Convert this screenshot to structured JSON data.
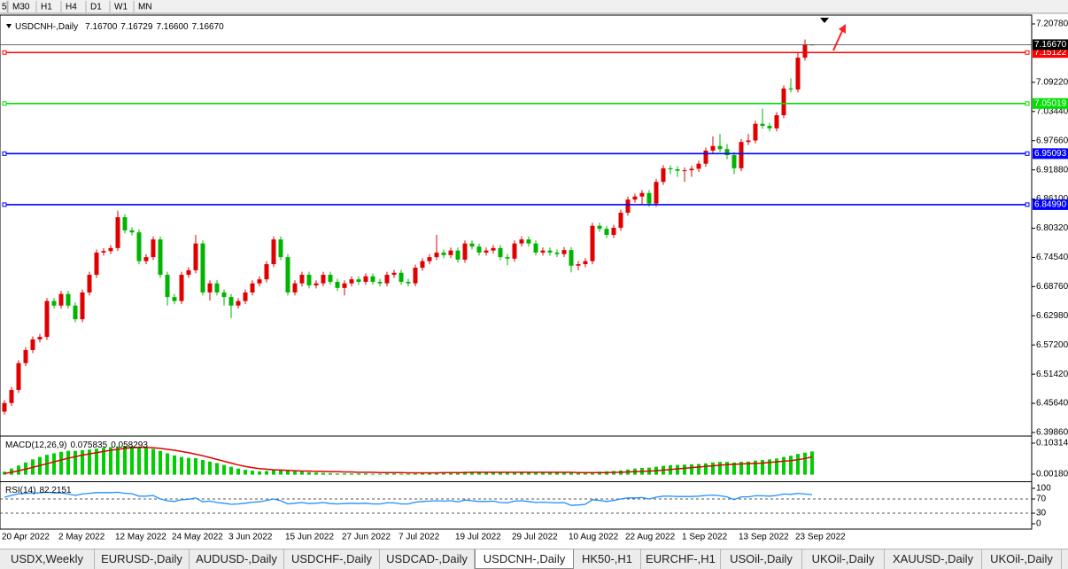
{
  "toolbar": [
    "5",
    "M30",
    "H1",
    "H4",
    "D1",
    "W1",
    "MN"
  ],
  "tabs": [
    {
      "label": "USDX,Weekly",
      "active": false
    },
    {
      "label": "EURUSD-,Daily",
      "active": false
    },
    {
      "label": "AUDUSD-,Daily",
      "active": false
    },
    {
      "label": "USDCHF-,Daily",
      "active": false
    },
    {
      "label": "USDCAD-,Daily",
      "active": false
    },
    {
      "label": "USDCNH-,Daily",
      "active": true
    },
    {
      "label": "HK50-,H1",
      "active": false
    },
    {
      "label": "EURCHF-,H1",
      "active": false
    },
    {
      "label": "USOil-,Daily",
      "active": false
    },
    {
      "label": "UKOil-,Daily",
      "active": false
    },
    {
      "label": "XAUUSD-,Daily",
      "active": false
    },
    {
      "label": "UKOil-,Daily",
      "active": false
    }
  ],
  "chart_data": [
    {
      "type": "candlestick",
      "title": "USDCNH-,Daily",
      "quote": [
        {
          "value": 7.167,
          "label": "7.16700"
        },
        7.16729,
        {
          "value": 7.166,
          "label": "7.16600"
        },
        {
          "value": 7.1667,
          "label": "7.16670"
        }
      ],
      "categories": [
        "20 Apr 2022",
        null,
        null,
        null,
        null,
        null,
        null,
        null,
        "2 May 2022",
        null,
        null,
        null,
        null,
        null,
        null,
        null,
        "12 May 2022",
        null,
        null,
        null,
        null,
        null,
        null,
        null,
        "24 May 2022",
        null,
        null,
        null,
        null,
        null,
        null,
        null,
        "3 Jun 2022",
        null,
        null,
        null,
        null,
        null,
        null,
        null,
        "15 Jun 2022",
        null,
        null,
        null,
        null,
        null,
        null,
        null,
        "27 Jun 2022",
        null,
        null,
        null,
        null,
        null,
        null,
        null,
        "7 Jul 2022",
        null,
        null,
        null,
        null,
        null,
        null,
        null,
        "19 Jul 2022",
        null,
        null,
        null,
        null,
        null,
        null,
        null,
        "29 Jul 2022",
        null,
        null,
        null,
        null,
        null,
        null,
        null,
        "10 Aug 2022",
        null,
        null,
        null,
        null,
        null,
        null,
        null,
        "22 Aug 2022",
        null,
        null,
        null,
        null,
        null,
        null,
        null,
        "1 Sep 2022",
        null,
        null,
        null,
        null,
        null,
        null,
        null,
        "13 Sep 2022",
        null,
        null,
        null,
        null,
        null,
        null,
        null,
        "23 Sep 2022",
        null,
        null
      ],
      "open": [
        6.44,
        6.457,
        6.483,
        6.536,
        6.562,
        6.583,
        6.588,
        6.659,
        6.65,
        6.673,
        6.65,
        6.623,
        6.676,
        6.711,
        6.755,
        6.758,
        6.764,
        6.825,
        6.799,
        6.795,
        6.738,
        6.746,
        6.781,
        6.711,
        6.667,
        6.659,
        6.711,
        6.72,
        6.773,
        6.676,
        6.694,
        6.676,
        6.667,
        6.65,
        6.659,
        6.676,
        6.694,
        6.702,
        6.732,
        6.781,
        6.746,
        6.676,
        6.694,
        6.711,
        6.69,
        6.694,
        6.711,
        6.697,
        6.685,
        6.694,
        6.702,
        6.697,
        6.708,
        6.697,
        6.694,
        6.711,
        6.715,
        6.697,
        6.694,
        6.725,
        6.738,
        6.746,
        6.755,
        6.75,
        6.759,
        6.741,
        6.773,
        6.767,
        6.755,
        6.759,
        6.764,
        6.746,
        6.743,
        6.773,
        6.781,
        6.773,
        6.755,
        6.759,
        6.755,
        6.752,
        6.76,
        6.729,
        6.732,
        6.738,
        6.808,
        6.802,
        6.79,
        6.804,
        6.834,
        6.86,
        6.866,
        6.873,
        6.852,
        6.895,
        6.922,
        6.92,
        6.917,
        6.918,
        6.921,
        6.931,
        6.957,
        6.966,
        6.96,
        6.948,
        6.922,
        6.974,
        6.977,
        7.01,
        7.006,
        7.001,
        7.027,
        7.08,
        7.078,
        7.141,
        7.167
      ],
      "high": [
        6.463,
        6.489,
        6.542,
        6.568,
        6.589,
        6.594,
        6.665,
        6.665,
        6.679,
        6.679,
        6.656,
        6.682,
        6.717,
        6.761,
        6.764,
        6.77,
        6.838,
        6.831,
        6.805,
        6.801,
        6.752,
        6.787,
        6.787,
        6.717,
        6.673,
        6.717,
        6.726,
        6.79,
        6.779,
        6.7,
        6.7,
        6.682,
        6.673,
        6.665,
        6.682,
        6.7,
        6.708,
        6.738,
        6.787,
        6.787,
        6.752,
        6.7,
        6.717,
        6.717,
        6.7,
        6.717,
        6.717,
        6.703,
        6.7,
        6.708,
        6.708,
        6.714,
        6.714,
        6.703,
        6.717,
        6.721,
        6.721,
        6.703,
        6.731,
        6.744,
        6.752,
        6.79,
        6.761,
        6.765,
        6.765,
        6.779,
        6.779,
        6.773,
        6.765,
        6.77,
        6.77,
        6.752,
        6.779,
        6.787,
        6.787,
        6.779,
        6.765,
        6.765,
        6.761,
        6.766,
        6.766,
        6.738,
        6.744,
        6.814,
        6.814,
        6.808,
        6.81,
        6.84,
        6.866,
        6.872,
        6.879,
        6.879,
        6.901,
        6.928,
        6.928,
        6.926,
        6.924,
        6.927,
        6.937,
        6.963,
        6.985,
        6.99,
        6.97,
        6.954,
        6.98,
        6.99,
        7.016,
        7.04,
        7.012,
        7.033,
        7.086,
        7.1,
        7.15,
        7.177,
        7.16729
      ],
      "low": [
        6.434,
        6.451,
        6.477,
        6.53,
        6.556,
        6.577,
        6.582,
        6.644,
        6.644,
        6.644,
        6.617,
        6.617,
        6.67,
        6.705,
        6.749,
        6.752,
        6.758,
        6.793,
        6.789,
        6.732,
        6.732,
        6.74,
        6.705,
        6.65,
        6.653,
        6.653,
        6.705,
        6.714,
        6.67,
        6.66,
        6.67,
        6.65,
        6.625,
        6.644,
        6.653,
        6.67,
        6.688,
        6.696,
        6.726,
        6.74,
        6.67,
        6.67,
        6.688,
        6.684,
        6.684,
        6.688,
        6.691,
        6.679,
        6.67,
        6.688,
        6.691,
        6.691,
        6.691,
        6.688,
        6.688,
        6.705,
        6.691,
        6.688,
        6.688,
        6.719,
        6.732,
        6.74,
        6.744,
        6.744,
        6.735,
        6.735,
        6.761,
        6.749,
        6.749,
        6.753,
        6.74,
        6.73,
        6.737,
        6.767,
        6.767,
        6.749,
        6.749,
        6.749,
        6.746,
        6.746,
        6.716,
        6.72,
        6.726,
        6.732,
        6.796,
        6.784,
        6.784,
        6.798,
        6.828,
        6.854,
        6.85,
        6.846,
        6.846,
        6.889,
        6.91,
        6.905,
        6.895,
        6.905,
        6.915,
        6.925,
        6.951,
        6.954,
        6.94,
        6.91,
        6.916,
        6.968,
        6.971,
        7.0,
        6.995,
        6.995,
        7.021,
        7.072,
        7.072,
        7.135,
        7.166
      ],
      "close": [
        6.457,
        6.483,
        6.536,
        6.562,
        6.583,
        6.588,
        6.659,
        6.65,
        6.673,
        6.65,
        6.623,
        6.676,
        6.711,
        6.755,
        6.758,
        6.764,
        6.825,
        6.799,
        6.795,
        6.738,
        6.746,
        6.781,
        6.711,
        6.667,
        6.659,
        6.711,
        6.72,
        6.773,
        6.676,
        6.694,
        6.676,
        6.667,
        6.65,
        6.659,
        6.676,
        6.694,
        6.702,
        6.732,
        6.781,
        6.746,
        6.676,
        6.694,
        6.711,
        6.69,
        6.694,
        6.711,
        6.697,
        6.685,
        6.694,
        6.702,
        6.697,
        6.708,
        6.697,
        6.694,
        6.711,
        6.715,
        6.697,
        6.694,
        6.725,
        6.738,
        6.746,
        6.755,
        6.75,
        6.759,
        6.741,
        6.773,
        6.767,
        6.755,
        6.759,
        6.764,
        6.746,
        6.743,
        6.773,
        6.781,
        6.773,
        6.755,
        6.759,
        6.755,
        6.752,
        6.76,
        6.729,
        6.732,
        6.738,
        6.808,
        6.802,
        6.79,
        6.804,
        6.834,
        6.86,
        6.866,
        6.873,
        6.852,
        6.895,
        6.922,
        6.92,
        6.917,
        6.918,
        6.921,
        6.931,
        6.957,
        6.966,
        6.96,
        6.948,
        6.922,
        6.974,
        6.977,
        7.01,
        7.006,
        7.001,
        7.027,
        7.08,
        7.078,
        7.141,
        7.167,
        7.1667
      ],
      "up_color": "#e00000",
      "down_color": "#00b400",
      "ylim": [
        6.3916,
        7.2201
      ],
      "yticks": [
        {
          "value": 7.2078,
          "label": "7.20780"
        },
        {
          "value": 7.0922,
          "label": "7.09220"
        },
        {
          "value": 7.0344,
          "label": "7.03440"
        },
        {
          "value": 6.9766,
          "label": "6.97660"
        },
        {
          "value": 6.9188,
          "label": "6.91880"
        },
        {
          "value": 6.861,
          "label": "6.86100"
        },
        {
          "value": 6.8032,
          "label": "6.80320"
        },
        {
          "value": 6.7454,
          "label": "6.74540"
        },
        {
          "value": 6.6876,
          "label": "6.68760"
        },
        {
          "value": 6.6298,
          "label": "6.62980"
        },
        {
          "value": 6.572,
          "label": "6.57200"
        },
        {
          "value": 6.5142,
          "label": "6.51420"
        },
        {
          "value": 6.4564,
          "label": "6.45640"
        },
        {
          "value": 6.3986,
          "label": "6.39860"
        }
      ],
      "levels": [
        {
          "value": 7.15122,
          "color": "#ff0000"
        },
        {
          "value": 7.05019,
          "color": "#00e000"
        },
        {
          "value": 6.95093,
          "color": "#0000ff"
        },
        {
          "value": 6.8499,
          "label": "6.84990",
          "color": "#0000ff"
        }
      ],
      "grid": false
    },
    {
      "type": "bar",
      "series": [
        {
          "name": "MACD(12,26,9)",
          "color": "#00d000",
          "values": [
            0.01,
            0.02,
            0.03,
            0.04,
            0.05,
            0.058,
            0.065,
            0.07,
            0.075,
            0.078,
            0.078,
            0.08,
            0.082,
            0.085,
            0.088,
            0.09,
            0.092,
            0.094,
            0.093,
            0.09,
            0.087,
            0.084,
            0.078,
            0.07,
            0.063,
            0.058,
            0.055,
            0.054,
            0.048,
            0.043,
            0.038,
            0.032,
            0.026,
            0.02,
            0.016,
            0.013,
            0.011,
            0.012,
            0.016,
            0.017,
            0.013,
            0.011,
            0.01,
            0.008,
            0.007,
            0.006,
            0.005,
            0.004,
            0.004,
            0.004,
            0.004,
            0.004,
            0.003,
            0.003,
            0.004,
            0.004,
            0.003,
            0.003,
            0.004,
            0.005,
            0.006,
            0.007,
            0.008,
            0.008,
            0.009,
            0.01,
            0.01,
            0.01,
            0.01,
            0.01,
            0.009,
            0.008,
            0.009,
            0.01,
            0.01,
            0.009,
            0.009,
            0.008,
            0.008,
            0.008,
            0.006,
            0.005,
            0.005,
            0.008,
            0.01,
            0.011,
            0.012,
            0.014,
            0.017,
            0.02,
            0.022,
            0.023,
            0.026,
            0.029,
            0.031,
            0.032,
            0.033,
            0.034,
            0.035,
            0.037,
            0.04,
            0.042,
            0.042,
            0.04,
            0.042,
            0.043,
            0.046,
            0.048,
            0.05,
            0.053,
            0.058,
            0.062,
            0.068,
            0.072,
            0.075835
          ]
        },
        {
          "color": "#e00000",
          "values": [
            0.004,
            0.008,
            0.013,
            0.018,
            0.024,
            0.03,
            0.036,
            0.042,
            0.048,
            0.054,
            0.059,
            0.064,
            0.068,
            0.072,
            0.076,
            0.08,
            0.083,
            0.086,
            0.088,
            0.089,
            0.089,
            0.088,
            0.086,
            0.083,
            0.08,
            0.076,
            0.072,
            0.067,
            0.062,
            0.056,
            0.05,
            0.044,
            0.038,
            0.032,
            0.027,
            0.023,
            0.02,
            0.018,
            0.016,
            0.015,
            0.014,
            0.013,
            0.012,
            0.012,
            0.011,
            0.011,
            0.01,
            0.01,
            0.009,
            0.009,
            0.008,
            0.008,
            0.008,
            0.007,
            0.007,
            0.007,
            0.007,
            0.006,
            0.006,
            0.006,
            0.006,
            0.006,
            0.007,
            0.007,
            0.007,
            0.007,
            0.008,
            0.008,
            0.008,
            0.008,
            0.008,
            0.008,
            0.008,
            0.008,
            0.008,
            0.008,
            0.008,
            0.008,
            0.008,
            0.008,
            0.008,
            0.007,
            0.007,
            0.007,
            0.007,
            0.007,
            0.008,
            0.008,
            0.009,
            0.01,
            0.011,
            0.012,
            0.013,
            0.015,
            0.017,
            0.019,
            0.021,
            0.023,
            0.025,
            0.027,
            0.029,
            0.031,
            0.033,
            0.034,
            0.035,
            0.036,
            0.037,
            0.038,
            0.04,
            0.042,
            0.044,
            0.046,
            0.049,
            0.053,
            0.058293
          ]
        }
      ],
      "ylim": [
        -0.0214,
        0.1234
      ],
      "yticks": [
        0.103145,
        {
          "value": 0.0018,
          "label": "0.00180"
        }
      ]
    },
    {
      "type": "line",
      "series": [
        {
          "name": "RSI(14)",
          "color": "#1e90ff",
          "values": [
            75,
            80,
            85,
            86,
            87,
            87,
            89,
            87,
            87,
            84,
            80,
            84,
            86,
            88,
            88,
            88,
            89,
            86,
            85,
            78,
            78,
            80,
            70,
            65,
            63,
            68,
            69,
            73,
            62,
            64,
            60,
            58,
            55,
            56,
            58,
            61,
            62,
            66,
            70,
            65,
            56,
            58,
            60,
            57,
            58,
            60,
            57,
            56,
            57,
            58,
            57,
            58,
            56,
            56,
            59,
            59,
            56,
            56,
            61,
            63,
            64,
            65,
            64,
            65,
            62,
            67,
            65,
            63,
            63,
            64,
            60,
            59,
            64,
            65,
            63,
            60,
            61,
            60,
            59,
            60,
            52,
            53,
            55,
            68,
            66,
            63,
            66,
            70,
            73,
            73,
            74,
            70,
            75,
            78,
            78,
            77,
            77,
            77,
            78,
            80,
            81,
            79,
            76,
            68,
            76,
            76,
            79,
            79,
            78,
            80,
            84,
            83,
            86,
            84,
            82.2151
          ]
        }
      ],
      "ylim": [
        -15,
        115
      ],
      "yticks": [
        100,
        70,
        30,
        0
      ],
      "levels": [
        70,
        30
      ]
    }
  ]
}
